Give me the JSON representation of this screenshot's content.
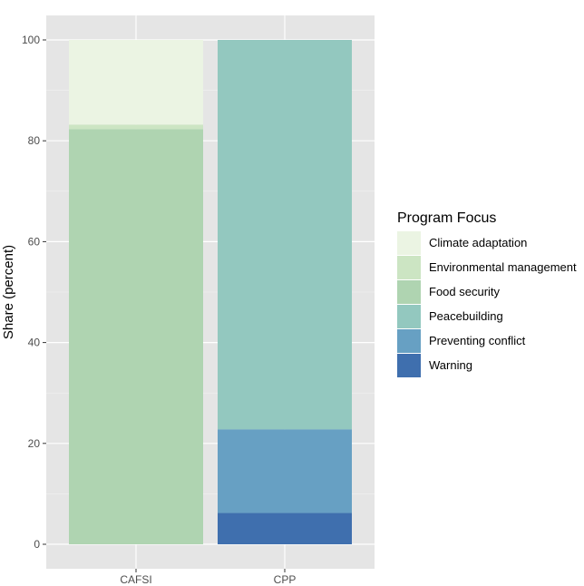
{
  "chart_data": {
    "type": "bar",
    "stacked": true,
    "categories": [
      "CAFSI",
      "CPP"
    ],
    "ylabel": "Share (percent)",
    "xlabel": "",
    "ylim": [
      0,
      105
    ],
    "yticks": [
      0,
      20,
      40,
      60,
      80,
      100
    ],
    "grid": true,
    "legend": {
      "title": "Program Focus",
      "position": "right"
    },
    "series": [
      {
        "name": "Warning",
        "color": "#3f6fae",
        "values": [
          0,
          6.2
        ]
      },
      {
        "name": "Preventing conflict",
        "color": "#67a0c3",
        "values": [
          0,
          16.6
        ]
      },
      {
        "name": "Peacebuilding",
        "color": "#93c8bf",
        "values": [
          0,
          77.2
        ]
      },
      {
        "name": "Food security",
        "color": "#afd4b1",
        "values": [
          82.3,
          0
        ]
      },
      {
        "name": "Environmental management",
        "color": "#cce5c3",
        "values": [
          0.9,
          0
        ]
      },
      {
        "name": "Climate adaptation",
        "color": "#ebf4e3",
        "values": [
          16.8,
          0
        ]
      }
    ],
    "legend_order": [
      "Climate adaptation",
      "Environmental management",
      "Food security",
      "Peacebuilding",
      "Preventing conflict",
      "Warning"
    ]
  }
}
